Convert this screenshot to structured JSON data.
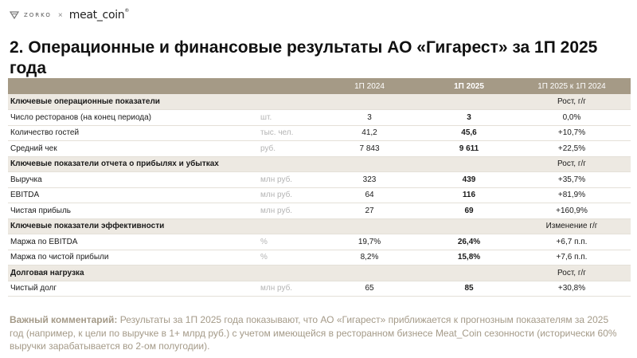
{
  "logo": {
    "brand1": "ZORKO",
    "cross": "×",
    "brand2": "meat_coin",
    "reg": "®"
  },
  "title": "2. Операционные и финансовые результаты АО «Гигарест» за 1П 2025 года",
  "table": {
    "headers": [
      "",
      "",
      "1П 2024",
      "1П 2025",
      "1П 2025 к 1П 2024"
    ],
    "sections": [
      {
        "title": "Ключевые операционные показатели",
        "change_label": "Рост, г/г",
        "rows": [
          {
            "label": "Число ресторанов (на конец периода)",
            "unit": "шт.",
            "v2024": "3",
            "v2025": "3",
            "change": "0,0%"
          },
          {
            "label": "Количество гостей",
            "unit": "тыс. чел.",
            "v2024": "41,2",
            "v2025": "45,6",
            "change": "+10,7%"
          },
          {
            "label": "Средний чек",
            "unit": "руб.",
            "v2024": "7 843",
            "v2025": "9 611",
            "change": "+22,5%"
          }
        ]
      },
      {
        "title": "Ключевые показатели отчета о прибылях и убытках",
        "change_label": "Рост, г/г",
        "rows": [
          {
            "label": "Выручка",
            "unit": "млн руб.",
            "v2024": "323",
            "v2025": "439",
            "change": "+35,7%"
          },
          {
            "label": "EBITDA",
            "unit": "млн руб.",
            "v2024": "64",
            "v2025": "116",
            "change": "+81,9%"
          },
          {
            "label": "Чистая прибыль",
            "unit": "млн руб.",
            "v2024": "27",
            "v2025": "69",
            "change": "+160,9%"
          }
        ]
      },
      {
        "title": "Ключевые показатели эффективности",
        "change_label": "Изменение г/г",
        "rows": [
          {
            "label": "Маржа по EBITDA",
            "unit": "%",
            "v2024": "19,7%",
            "v2025": "26,4%",
            "change": "+6,7 п.п."
          },
          {
            "label": "Маржа по чистой прибыли",
            "unit": "%",
            "v2024": "8,2%",
            "v2025": "15,8%",
            "change": "+7,6 п.п."
          }
        ]
      },
      {
        "title": "Долговая нагрузка",
        "change_label": "Рост, г/г",
        "rows": [
          {
            "label": "Чистый долг",
            "unit": "млн руб.",
            "v2024": "65",
            "v2025": "85",
            "change": "+30,8%"
          }
        ]
      }
    ]
  },
  "comment": {
    "lead": "Важный комментарий:",
    "text": " Результаты за 1П 2025 года показывают, что АО «Гигарест» приближается к прогнозным показателям за 2025 год (например, к цели по выручке в 1+ млрд руб.) с учетом имеющейся в ресторанном бизнесе Meat_Coin сезонности (исторически 60% выручки зарабатывается во 2-ом полугодии)."
  },
  "colors": {
    "header_bg": "#a59a86",
    "section_bg": "#ede9e2",
    "comment_text": "#a49a88"
  }
}
